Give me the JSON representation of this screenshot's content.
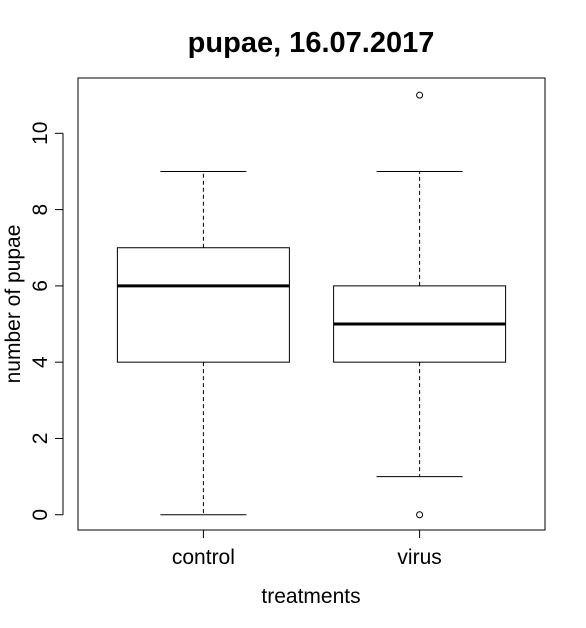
{
  "chart_data": {
    "type": "boxplot",
    "title": "pupae, 16.07.2017",
    "xlabel": "treatments",
    "ylabel": "number of pupae",
    "ylim": [
      -0.4,
      11.45
    ],
    "yticks": [
      0,
      2,
      4,
      6,
      8,
      10
    ],
    "grid": false,
    "categories": [
      "control",
      "virus"
    ],
    "boxes": [
      {
        "category": "control",
        "whisker_low": 0,
        "q1": 4,
        "median": 6,
        "q3": 7,
        "whisker_high": 9,
        "outliers": []
      },
      {
        "category": "virus",
        "whisker_low": 1,
        "q1": 4,
        "median": 5,
        "q3": 6,
        "whisker_high": 9,
        "outliers": [
          0,
          11
        ]
      }
    ],
    "colors": {
      "line": "#000000",
      "fill": "#ffffff"
    }
  }
}
